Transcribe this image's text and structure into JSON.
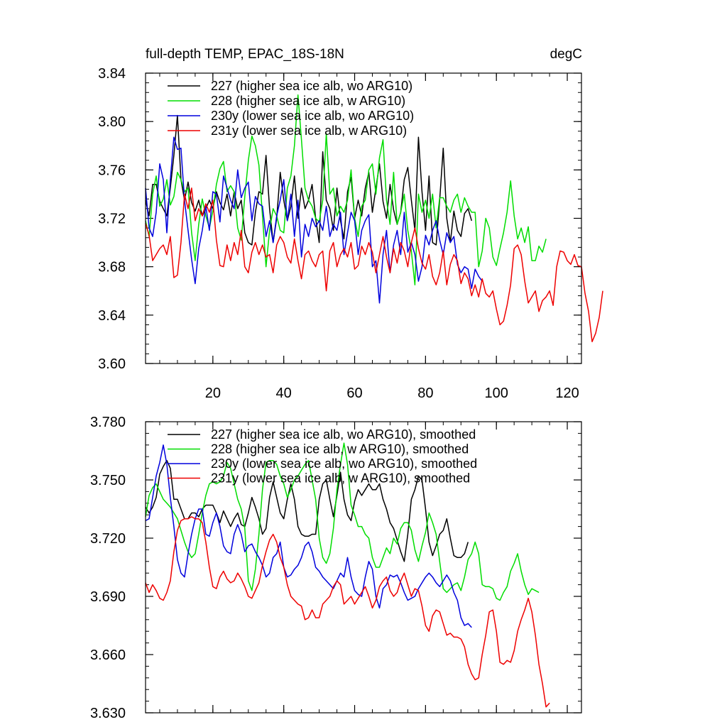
{
  "chart_data": [
    {
      "type": "line",
      "title": "full-depth TEMP, EPAC_18S-18N",
      "units": "degC",
      "xlim": [
        1,
        124
      ],
      "ylim": [
        3.6,
        3.84
      ],
      "x_ticks": [
        20,
        40,
        60,
        80,
        100,
        120
      ],
      "x_tick_labels": [
        "20",
        "40",
        "60",
        "80",
        "100",
        "120"
      ],
      "y_ticks": [
        3.6,
        3.64,
        3.68,
        3.72,
        3.76,
        3.8,
        3.84
      ],
      "y_tick_labels": [
        "3.60",
        "3.64",
        "3.68",
        "3.72",
        "3.76",
        "3.80",
        "3.84"
      ],
      "legend_position": "top-left",
      "series": [
        {
          "name": "227 (higher sea ice alb, wo ARG10)",
          "color": "#000000",
          "x_start": 1,
          "values": [
            3.735,
            3.722,
            3.748,
            3.748,
            3.734,
            3.728,
            3.722,
            3.745,
            3.772,
            3.805,
            3.752,
            3.735,
            3.75,
            3.733,
            3.726,
            3.735,
            3.722,
            3.728,
            3.735,
            3.728,
            3.742,
            3.733,
            3.727,
            3.74,
            3.722,
            3.742,
            3.728,
            3.735,
            3.708,
            3.7,
            3.698,
            3.725,
            3.742,
            3.74,
            3.772,
            3.728,
            3.7,
            3.72,
            3.758,
            3.735,
            3.718,
            3.73,
            3.755,
            3.72,
            3.745,
            3.728,
            3.735,
            3.748,
            3.72,
            3.7,
            3.775,
            3.735,
            3.728,
            3.71,
            3.745,
            3.718,
            3.703,
            3.742,
            3.754,
            3.72,
            3.735,
            3.722,
            3.745,
            3.758,
            3.725,
            3.745,
            3.765,
            3.734,
            3.72,
            3.748,
            3.727,
            3.715,
            3.725,
            3.752,
            3.762,
            3.735,
            3.71,
            3.787,
            3.742,
            3.71,
            3.755,
            3.7,
            3.698,
            3.735,
            3.778,
            3.72,
            3.7,
            3.726,
            3.71,
            3.705,
            3.724,
            3.728,
            3.718
          ]
        },
        {
          "name": "228 (higher sea ice alb, w ARG10)",
          "color": "#00dd00",
          "x_start": 1,
          "values": [
            3.718,
            3.705,
            3.74,
            3.755,
            3.73,
            3.736,
            3.752,
            3.731,
            3.738,
            3.758,
            3.752,
            3.742,
            3.745,
            3.708,
            3.685,
            3.715,
            3.736,
            3.722,
            3.712,
            3.726,
            3.748,
            3.761,
            3.767,
            3.742,
            3.747,
            3.742,
            3.712,
            3.702,
            3.738,
            3.768,
            3.788,
            3.78,
            3.764,
            3.722,
            3.68,
            3.71,
            3.728,
            3.722,
            3.71,
            3.708,
            3.745,
            3.755,
            3.78,
            3.822,
            3.785,
            3.745,
            3.735,
            3.73,
            3.72,
            3.717,
            3.735,
            3.79,
            3.74,
            3.745,
            3.722,
            3.73,
            3.725,
            3.735,
            3.76,
            3.72,
            3.705,
            3.73,
            3.735,
            3.76,
            3.765,
            3.74,
            3.77,
            3.785,
            3.735,
            3.715,
            3.758,
            3.715,
            3.725,
            3.74,
            3.71,
            3.693,
            3.665,
            3.74,
            3.725,
            3.735,
            3.72,
            3.74,
            3.712,
            3.737,
            3.737,
            3.73,
            3.725,
            3.735,
            3.74,
            3.725,
            3.737,
            3.73,
            3.725,
            3.725,
            3.68,
            3.693,
            3.72,
            3.712,
            3.688,
            3.681,
            3.695,
            3.708,
            3.725,
            3.751,
            3.722,
            3.703,
            3.712,
            3.7,
            3.713,
            3.685,
            3.685,
            3.697,
            3.692,
            3.703
          ]
        },
        {
          "name": "230y (lower sea ice alb, wo ARG10)",
          "color": "#0000dd",
          "x_start": 1,
          "values": [
            3.745,
            3.712,
            3.705,
            3.725,
            3.765,
            3.752,
            3.708,
            3.752,
            3.787,
            3.777,
            3.778,
            3.735,
            3.71,
            3.686,
            3.666,
            3.695,
            3.71,
            3.73,
            3.71,
            3.742,
            3.74,
            3.717,
            3.755,
            3.745,
            3.735,
            3.728,
            3.76,
            3.737,
            3.745,
            3.75,
            3.718,
            3.738,
            3.732,
            3.73,
            3.705,
            3.718,
            3.7,
            3.722,
            3.735,
            3.752,
            3.718,
            3.74,
            3.705,
            3.735,
            3.688,
            3.715,
            3.705,
            3.72,
            3.713,
            3.718,
            3.71,
            3.73,
            3.705,
            3.715,
            3.71,
            3.725,
            3.69,
            3.708,
            3.725,
            3.718,
            3.69,
            3.71,
            3.718,
            3.723,
            3.68,
            3.685,
            3.65,
            3.69,
            3.71,
            3.675,
            3.698,
            3.71,
            3.69,
            3.725,
            3.692,
            3.7,
            3.69,
            3.668,
            3.68,
            3.706,
            3.698,
            3.71,
            3.718,
            3.702,
            3.69,
            3.708,
            3.7,
            3.705,
            3.682,
            3.675,
            3.68,
            3.678,
            3.662,
            3.678,
            3.672,
            3.668
          ]
        },
        {
          "name": "231y (lower sea ice alb, w ARG10)",
          "color": "#ee0000",
          "x_start": 1,
          "values": [
            3.716,
            3.706,
            3.685,
            3.69,
            3.695,
            3.698,
            3.69,
            3.705,
            3.671,
            3.673,
            3.7,
            3.74,
            3.728,
            3.745,
            3.718,
            3.728,
            3.722,
            3.732,
            3.725,
            3.735,
            3.702,
            3.681,
            3.68,
            3.698,
            3.685,
            3.7,
            3.69,
            3.71,
            3.68,
            3.675,
            3.692,
            3.7,
            3.69,
            3.698,
            3.688,
            3.69,
            3.675,
            3.698,
            3.705,
            3.7,
            3.688,
            3.683,
            3.703,
            3.685,
            3.67,
            3.69,
            3.693,
            3.685,
            3.68,
            3.69,
            3.693,
            3.66,
            3.693,
            3.7,
            3.68,
            3.69,
            3.695,
            3.688,
            3.7,
            3.678,
            3.681,
            3.697,
            3.69,
            3.7,
            3.692,
            3.675,
            3.69,
            3.705,
            3.688,
            3.675,
            3.695,
            3.683,
            3.7,
            3.693,
            3.68,
            3.7,
            3.712,
            3.695,
            3.683,
            3.678,
            3.69,
            3.672,
            3.665,
            3.675,
            3.693,
            3.665,
            3.682,
            3.69,
            3.685,
            3.666,
            3.675,
            3.67,
            3.656,
            3.665,
            3.655,
            3.67,
            3.658,
            3.655,
            3.66,
            3.645,
            3.632,
            3.635,
            3.648,
            3.665,
            3.695,
            3.698,
            3.69,
            3.668,
            3.65,
            3.655,
            3.66,
            3.643,
            3.652,
            3.655,
            3.66,
            3.648,
            3.68,
            3.693,
            3.692,
            3.685,
            3.682,
            3.69,
            3.681,
            3.68,
            3.658,
            3.643,
            3.618,
            3.625,
            3.638,
            3.66
          ]
        }
      ]
    },
    {
      "type": "line",
      "title": "",
      "xlim": [
        1,
        124
      ],
      "ylim": [
        3.63,
        3.78
      ],
      "y_ticks": [
        3.63,
        3.66,
        3.69,
        3.72,
        3.75,
        3.78
      ],
      "y_tick_labels": [
        "3.630",
        "3.660",
        "3.690",
        "3.720",
        "3.750",
        "3.780"
      ],
      "legend_position": "top-left",
      "series": [
        {
          "name": "227 (higher sea ice alb, wo ARG10), smoothed",
          "color": "#000000",
          "x_start": 1,
          "values": [
            3.736,
            3.733,
            3.736,
            3.741,
            3.753,
            3.757,
            3.76,
            3.756,
            3.74,
            3.74,
            3.735,
            3.73,
            3.73,
            3.733,
            3.733,
            3.731,
            3.735,
            3.737,
            3.737,
            3.737,
            3.733,
            3.728,
            3.734,
            3.73,
            3.726,
            3.73,
            3.733,
            3.727,
            3.726,
            3.733,
            3.741,
            3.736,
            3.73,
            3.722,
            3.725,
            3.741,
            3.749,
            3.741,
            3.733,
            3.73,
            3.74,
            3.748,
            3.74,
            3.726,
            3.722,
            3.721,
            3.721,
            3.722,
            3.722,
            3.74,
            3.748,
            3.75,
            3.74,
            3.731,
            3.742,
            3.754,
            3.74,
            3.732,
            3.729,
            3.739,
            3.745,
            3.742,
            3.745,
            3.748,
            3.745,
            3.745,
            3.748,
            3.74,
            3.735,
            3.728,
            3.725,
            3.719,
            3.713,
            3.708,
            3.722,
            3.74,
            3.745,
            3.752,
            3.75,
            3.735,
            3.718,
            3.711,
            3.716,
            3.722,
            3.724,
            3.73,
            3.72,
            3.711,
            3.71,
            3.71,
            3.712,
            3.718
          ]
        },
        {
          "name": "228 (higher sea ice alb, w ARG10), smoothed",
          "color": "#00dd00",
          "x_start": 1,
          "values": [
            3.731,
            3.742,
            3.746,
            3.748,
            3.744,
            3.74,
            3.738,
            3.736,
            3.733,
            3.73,
            3.724,
            3.718,
            3.713,
            3.71,
            3.712,
            3.722,
            3.733,
            3.742,
            3.748,
            3.749,
            3.748,
            3.749,
            3.752,
            3.759,
            3.756,
            3.748,
            3.74,
            3.735,
            3.725,
            3.698,
            3.693,
            3.704,
            3.722,
            3.745,
            3.759,
            3.76,
            3.76,
            3.758,
            3.752,
            3.748,
            3.741,
            3.745,
            3.75,
            3.752,
            3.755,
            3.758,
            3.76,
            3.75,
            3.74,
            3.72,
            3.71,
            3.707,
            3.712,
            3.725,
            3.745,
            3.758,
            3.769,
            3.758,
            3.737,
            3.732,
            3.726,
            3.726,
            3.722,
            3.72,
            3.71,
            3.705,
            3.705,
            3.71,
            3.715,
            3.712,
            3.72,
            3.717,
            3.725,
            3.728,
            3.728,
            3.724,
            3.714,
            3.708,
            3.716,
            3.723,
            3.733,
            3.728,
            3.722,
            3.708,
            3.694,
            3.692,
            3.694,
            3.696,
            3.697,
            3.693,
            3.7,
            3.709,
            3.712,
            3.718,
            3.712,
            3.696,
            3.695,
            3.695,
            3.694,
            3.689,
            3.688,
            3.692,
            3.695,
            3.703,
            3.707,
            3.712,
            3.703,
            3.696,
            3.691,
            3.694,
            3.693,
            3.692
          ]
        },
        {
          "name": "230y (lower sea ice alb, wo ARG10), smoothed",
          "color": "#0000dd",
          "x_start": 1,
          "values": [
            3.729,
            3.73,
            3.741,
            3.752,
            3.759,
            3.768,
            3.758,
            3.741,
            3.726,
            3.709,
            3.702,
            3.7,
            3.712,
            3.722,
            3.73,
            3.735,
            3.735,
            3.722,
            3.721,
            3.728,
            3.733,
            3.726,
            3.716,
            3.713,
            3.712,
            3.722,
            3.727,
            3.722,
            3.713,
            3.716,
            3.717,
            3.713,
            3.71,
            3.706,
            3.7,
            3.702,
            3.71,
            3.712,
            3.718,
            3.705,
            3.7,
            3.701,
            3.704,
            3.706,
            3.71,
            3.716,
            3.718,
            3.713,
            3.705,
            3.703,
            3.7,
            3.698,
            3.696,
            3.694,
            3.698,
            3.702,
            3.7,
            3.71,
            3.7,
            3.693,
            3.691,
            3.69,
            3.7,
            3.708,
            3.704,
            3.69,
            3.684,
            3.694,
            3.696,
            3.701,
            3.7,
            3.701,
            3.697,
            3.692,
            3.688,
            3.689,
            3.69,
            3.694,
            3.697,
            3.7,
            3.702,
            3.7,
            3.697,
            3.695,
            3.698,
            3.701,
            3.698,
            3.692,
            3.688,
            3.679,
            3.675,
            3.676,
            3.674
          ]
        },
        {
          "name": "231y (lower sea ice alb, w ARG10), smoothed",
          "color": "#ee0000",
          "x_start": 1,
          "values": [
            3.697,
            3.692,
            3.696,
            3.693,
            3.689,
            3.688,
            3.692,
            3.698,
            3.713,
            3.724,
            3.729,
            3.73,
            3.73,
            3.731,
            3.73,
            3.73,
            3.728,
            3.718,
            3.705,
            3.695,
            3.694,
            3.7,
            3.703,
            3.699,
            3.697,
            3.698,
            3.702,
            3.699,
            3.695,
            3.69,
            3.689,
            3.693,
            3.697,
            3.706,
            3.713,
            3.719,
            3.722,
            3.718,
            3.71,
            3.705,
            3.696,
            3.69,
            3.688,
            3.686,
            3.685,
            3.678,
            3.679,
            3.683,
            3.679,
            3.679,
            3.686,
            3.688,
            3.69,
            3.695,
            3.698,
            3.696,
            3.686,
            3.688,
            3.69,
            3.686,
            3.689,
            3.692,
            3.695,
            3.69,
            3.684,
            3.688,
            3.695,
            3.698,
            3.7,
            3.693,
            3.69,
            3.692,
            3.698,
            3.702,
            3.696,
            3.69,
            3.694,
            3.693,
            3.685,
            3.675,
            3.672,
            3.68,
            3.683,
            3.682,
            3.676,
            3.67,
            3.671,
            3.669,
            3.669,
            3.668,
            3.664,
            3.655,
            3.65,
            3.647,
            3.648,
            3.66,
            3.67,
            3.682,
            3.683,
            3.672,
            3.656,
            3.655,
            3.657,
            3.656,
            3.662,
            3.672,
            3.678,
            3.683,
            3.689,
            3.682,
            3.67,
            3.655,
            3.645,
            3.633,
            3.635
          ]
        }
      ]
    }
  ]
}
